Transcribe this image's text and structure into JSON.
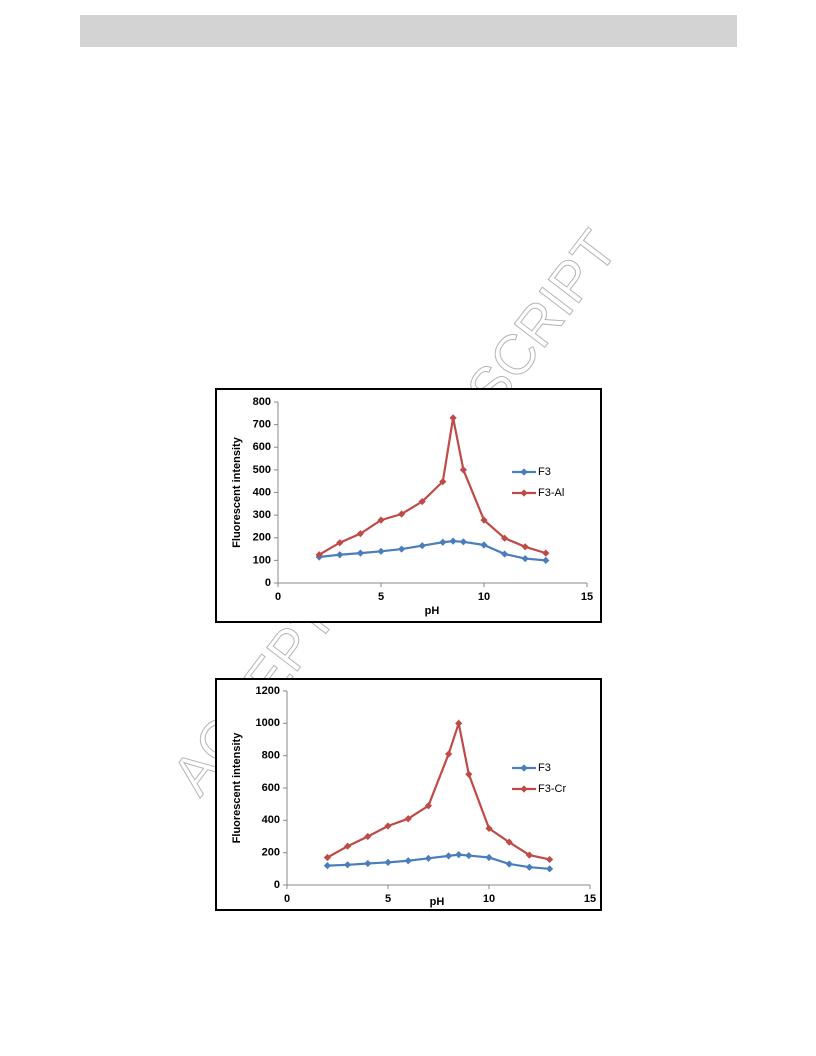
{
  "watermark": "ACCEPTED MANUSCRIPT",
  "chart_data": [
    {
      "type": "line",
      "xlabel": "pH",
      "ylabel": "Fluorescent intensity",
      "x": [
        2,
        3,
        4,
        5,
        6,
        7,
        8,
        8.5,
        9,
        10,
        11,
        12,
        13
      ],
      "series": [
        {
          "name": "F3",
          "color": "#4a7ebb",
          "values": [
            115,
            125,
            132,
            140,
            150,
            165,
            180,
            185,
            182,
            168,
            128,
            108,
            100
          ]
        },
        {
          "name": "F3-Al",
          "color": "#be4b48",
          "values": [
            125,
            178,
            218,
            278,
            305,
            360,
            448,
            730,
            500,
            278,
            198,
            160,
            132
          ]
        }
      ],
      "xlim": [
        0,
        15
      ],
      "xticks": [
        0,
        5,
        10,
        15
      ],
      "ylim": [
        0,
        800
      ],
      "yticks": [
        0,
        100,
        200,
        300,
        400,
        500,
        600,
        700,
        800
      ],
      "legend": "right"
    },
    {
      "type": "line",
      "xlabel": "pH",
      "ylabel": "Fluorescent intensity",
      "x": [
        2,
        3,
        4,
        5,
        6,
        7,
        8,
        8.5,
        9,
        10,
        11,
        12,
        13
      ],
      "series": [
        {
          "name": "F3",
          "color": "#4a7ebb",
          "values": [
            120,
            125,
            133,
            140,
            150,
            165,
            180,
            188,
            182,
            170,
            130,
            110,
            100
          ]
        },
        {
          "name": "F3-Cr",
          "color": "#be4b48",
          "values": [
            170,
            240,
            300,
            365,
            410,
            490,
            810,
            1000,
            685,
            350,
            265,
            185,
            158
          ]
        }
      ],
      "xlim": [
        0,
        15
      ],
      "xticks": [
        0,
        5,
        10,
        15
      ],
      "ylim": [
        0,
        1200
      ],
      "yticks": [
        0,
        200,
        400,
        600,
        800,
        1000,
        1200
      ],
      "legend": "right"
    }
  ]
}
